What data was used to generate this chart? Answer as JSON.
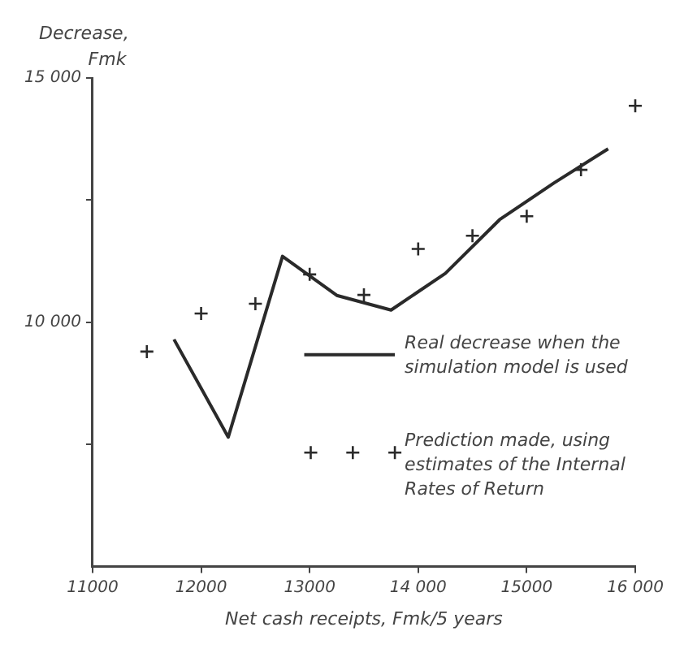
{
  "chart_data": {
    "type": "line",
    "xlabel": "Net cash receipts, Fmk/5 years",
    "ylabel": "Decrease, Fmk",
    "xlim": [
      11000,
      16000
    ],
    "xticks": [
      11000,
      12000,
      13000,
      {
        "value": 14000,
        "label": "14 000"
      },
      15000,
      {
        "value": 16000,
        "label": "16 000"
      }
    ],
    "ylim": [
      5000,
      15000
    ],
    "yticks": [
      {
        "value": 7500,
        "label": null
      },
      {
        "value": 10000,
        "label": "10 000"
      },
      {
        "value": 12500,
        "label": null
      },
      {
        "value": 15000,
        "label": "15 000"
      }
    ],
    "grid": false,
    "legend": "right",
    "series": [
      {
        "name": "Real decrease when the simulation model is used",
        "marker": "none",
        "line_style": "solid",
        "color": "#2a2a2a",
        "x": [
          11750,
          12250,
          12750,
          13250,
          13750,
          14250,
          14750,
          15250,
          15750
        ],
        "values": [
          9650,
          7650,
          11350,
          10550,
          10250,
          11000,
          12100,
          12850,
          13550
        ]
      },
      {
        "name": "Prediction made, using estimates of the Internal Rates of Return",
        "type": "scatter",
        "marker": "cross",
        "color": "#2a2a2a",
        "x": [
          11500,
          12000,
          12500,
          13000,
          13500,
          14000,
          14500,
          15000,
          15500,
          16000
        ],
        "values": [
          9400,
          10180,
          10380,
          10980,
          10560,
          11500,
          11770,
          12170,
          13120,
          14430
        ]
      }
    ]
  }
}
